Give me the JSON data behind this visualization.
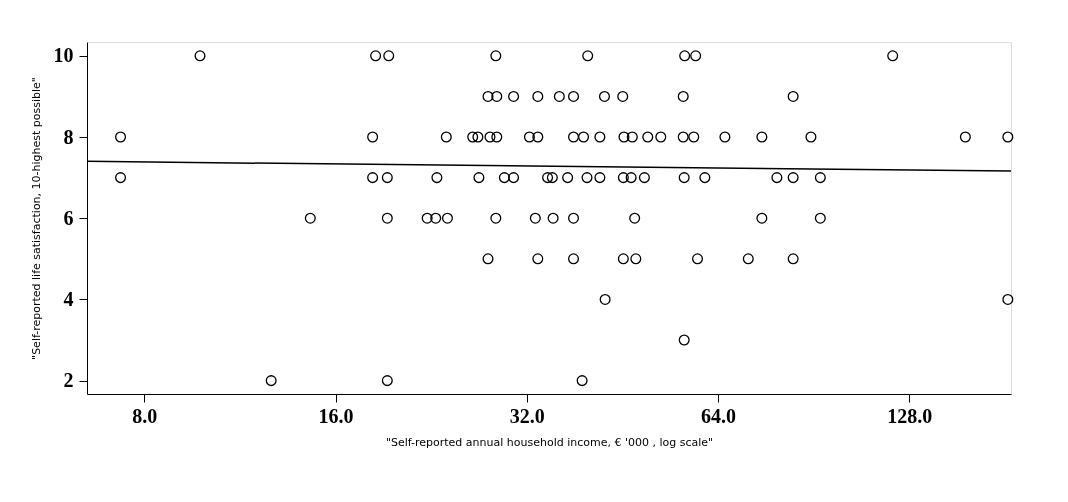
{
  "chart_data": {
    "type": "scatter",
    "xlabel": "\"Self-reported annual household income, € '000 , log scale\"",
    "ylabel": "\"Self-reported life satisfaction, 10-highest possible\"",
    "log": "x",
    "grid": false,
    "marker": "circle",
    "xlim": [
      6.5,
      185
    ],
    "ylim": [
      1.67,
      10.34
    ],
    "xticks": [
      {
        "value": 8,
        "label": "8.0"
      },
      {
        "value": 16,
        "label": "16.0"
      },
      {
        "value": 32,
        "label": "32.0"
      },
      {
        "value": 64,
        "label": "64.0"
      },
      {
        "value": 128,
        "label": "128.0"
      }
    ],
    "yticks": [
      2,
      4,
      6,
      8,
      10
    ],
    "series": [
      {
        "color": "#000000",
        "x": [
          9.79,
          18.5,
          19.4,
          28.6,
          39.9,
          56.7,
          59.0,
          120.5,
          27.8,
          28.7,
          30.5,
          33.3,
          36.0,
          37.9,
          42.4,
          45.3,
          56.4,
          84.0,
          7.34,
          18.3,
          23.9,
          26.3,
          26.8,
          28.0,
          28.7,
          32.3,
          33.3,
          37.9,
          39.3,
          41.7,
          45.5,
          46.9,
          49.6,
          52.0,
          56.4,
          58.6,
          65.6,
          75.0,
          89.6,
          156.8,
          182.9,
          7.34,
          18.3,
          19.3,
          23.1,
          26.9,
          29.5,
          30.5,
          34.5,
          35.1,
          37.1,
          39.8,
          41.7,
          45.4,
          46.7,
          49.0,
          56.6,
          61.0,
          79.2,
          84.0,
          92.7,
          14.6,
          19.3,
          22.3,
          23.0,
          24.0,
          28.6,
          33.0,
          35.2,
          37.9,
          47.3,
          75.0,
          92.7,
          27.8,
          33.3,
          37.9,
          45.4,
          47.5,
          59.4,
          71.4,
          84.0,
          42.5,
          182.9,
          56.6,
          12.67,
          19.3,
          39.1
        ],
        "values": [
          10,
          10,
          10,
          10,
          10,
          10,
          10,
          10,
          9,
          9,
          9,
          9,
          9,
          9,
          9,
          9,
          9,
          9,
          8,
          8,
          8,
          8,
          8,
          8,
          8,
          8,
          8,
          8,
          8,
          8,
          8,
          8,
          8,
          8,
          8,
          8,
          8,
          8,
          8,
          8,
          8,
          7,
          7,
          7,
          7,
          7,
          7,
          7,
          7,
          7,
          7,
          7,
          7,
          7,
          7,
          7,
          7,
          7,
          7,
          7,
          7,
          6,
          6,
          6,
          6,
          6,
          6,
          6,
          6,
          6,
          6,
          6,
          6,
          5,
          5,
          5,
          5,
          5,
          5,
          5,
          5,
          4,
          4,
          3,
          2,
          2,
          2
        ]
      },
      {
        "type": "line",
        "marker": "none",
        "color": "#000000",
        "x": [
          6.5,
          185
        ],
        "values": [
          7.4,
          7.16
        ]
      }
    ]
  }
}
